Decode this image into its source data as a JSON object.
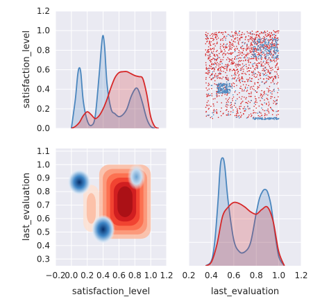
{
  "chart_data": {
    "type": "pairgrid",
    "variables": [
      "satisfaction_level",
      "last_evaluation"
    ],
    "series": [
      {
        "name": "",
        "color": "#4a86be"
      },
      {
        "name": "",
        "color": "#d62728"
      }
    ],
    "grid": true,
    "background": "#eaeaf2",
    "axes": {
      "satisfaction_level": {
        "label": "satisfaction_level",
        "range": [
          -0.2,
          1.2
        ],
        "ticks": [
          "−0.2",
          "0.0",
          "0.2",
          "0.4",
          "0.6",
          "0.8",
          "1.0",
          "1.2"
        ],
        "tick_values": [
          -0.2,
          0.0,
          0.2,
          0.4,
          0.6,
          0.8,
          1.0,
          1.2
        ],
        "y_ticks": [
          "0.0",
          "0.2",
          "0.4",
          "0.6",
          "0.8",
          "1.0",
          "1.2"
        ],
        "y_tick_values": [
          0.0,
          0.2,
          0.4,
          0.6,
          0.8,
          1.0,
          1.2
        ]
      },
      "last_evaluation": {
        "label": "last_evaluation",
        "range": [
          0.2,
          1.2
        ],
        "ticks": [
          "0.2",
          "0.4",
          "0.6",
          "0.8",
          "1.0",
          "1.2"
        ],
        "tick_values": [
          0.2,
          0.4,
          0.6,
          0.8,
          1.0,
          1.2
        ],
        "y_ticks": [
          "0.3",
          "0.4",
          "0.5",
          "0.6",
          "0.7",
          "0.8",
          "0.9",
          "1.0",
          "1.1"
        ],
        "y_tick_values": [
          0.3,
          0.4,
          0.5,
          0.6,
          0.7,
          0.8,
          0.9,
          1.0,
          1.1
        ]
      }
    },
    "panels": [
      {
        "position": "top-left",
        "type": "kde",
        "variable": "satisfaction_level",
        "series": [
          {
            "series_index": 0,
            "x": [
              0.0,
              0.05,
              0.08,
              0.1,
              0.12,
              0.15,
              0.2,
              0.25,
              0.3,
              0.35,
              0.38,
              0.4,
              0.42,
              0.45,
              0.5,
              0.55,
              0.6,
              0.65,
              0.7,
              0.75,
              0.8,
              0.83,
              0.86,
              0.9,
              0.95,
              1.0,
              1.05
            ],
            "y": [
              0.0,
              0.3,
              0.55,
              0.62,
              0.56,
              0.28,
              0.08,
              0.03,
              0.12,
              0.55,
              0.85,
              0.95,
              0.82,
              0.45,
              0.2,
              0.15,
              0.12,
              0.14,
              0.2,
              0.32,
              0.4,
              0.41,
              0.36,
              0.25,
              0.1,
              0.02,
              0.0
            ]
          },
          {
            "series_index": 1,
            "x": [
              0.0,
              0.05,
              0.1,
              0.15,
              0.2,
              0.25,
              0.3,
              0.35,
              0.4,
              0.45,
              0.5,
              0.55,
              0.6,
              0.65,
              0.7,
              0.75,
              0.8,
              0.85,
              0.9,
              0.95,
              1.0,
              1.05,
              1.1
            ],
            "y": [
              0.0,
              0.02,
              0.06,
              0.13,
              0.17,
              0.14,
              0.1,
              0.13,
              0.2,
              0.3,
              0.42,
              0.52,
              0.57,
              0.58,
              0.58,
              0.56,
              0.54,
              0.53,
              0.51,
              0.35,
              0.12,
              0.02,
              0.0
            ]
          }
        ]
      },
      {
        "position": "top-right",
        "type": "scatter",
        "x_variable": "last_evaluation",
        "y_variable": "satisfaction_level",
        "series": [
          {
            "series_index": 1,
            "regions": [
              {
                "x": [
                  0.35,
                  1.0
                ],
                "y": [
                  0.5,
                  1.0
                ],
                "weight": 900
              },
              {
                "x": [
                  0.35,
                  1.0
                ],
                "y": [
                  0.1,
                  0.5
                ],
                "weight": 350
              }
            ]
          },
          {
            "series_index": 0,
            "regions": [
              {
                "x": [
                  0.35,
                  1.0
                ],
                "y": [
                  0.1,
                  1.0
                ],
                "weight": 140
              },
              {
                "x": [
                  0.45,
                  0.57
                ],
                "y": [
                  0.36,
                  0.46
                ],
                "weight": 150
              },
              {
                "x": [
                  0.77,
                  1.0
                ],
                "y": [
                  0.72,
                  0.92
                ],
                "weight": 180
              },
              {
                "x": [
                  0.77,
                  1.0
                ],
                "y": [
                  0.09,
                  0.11
                ],
                "weight": 70
              }
            ]
          }
        ]
      },
      {
        "position": "bottom-left",
        "type": "kde2d",
        "x_variable": "satisfaction_level",
        "y_variable": "last_evaluation",
        "series": [
          {
            "series_index": 1,
            "regions": [
              {
                "x": [
                  0.35,
                  1.0
                ],
                "y": [
                  0.45,
                  1.0
                ],
                "level": 0.9
              },
              {
                "x": [
                  0.15,
                  0.35
                ],
                "y": [
                  0.5,
                  0.85
                ],
                "level": 0.35
              }
            ]
          },
          {
            "series_index": 0,
            "regions": [
              {
                "cx": 0.1,
                "cy": 0.87,
                "level": 0.8
              },
              {
                "cx": 0.4,
                "cy": 0.52,
                "level": 1.0
              },
              {
                "cx": 0.82,
                "cy": 0.91,
                "level": 0.3
              }
            ]
          }
        ]
      },
      {
        "position": "bottom-right",
        "type": "kde",
        "variable": "last_evaluation",
        "series": [
          {
            "series_index": 0,
            "x": [
              0.35,
              0.4,
              0.43,
              0.46,
              0.48,
              0.5,
              0.52,
              0.55,
              0.6,
              0.65,
              0.7,
              0.75,
              0.8,
              0.83,
              0.86,
              0.88,
              0.9,
              0.93,
              0.96,
              1.0,
              1.05
            ],
            "y": [
              0.0,
              0.04,
              0.2,
              0.55,
              0.85,
              0.92,
              0.85,
              0.55,
              0.22,
              0.12,
              0.12,
              0.2,
              0.45,
              0.58,
              0.64,
              0.65,
              0.63,
              0.52,
              0.32,
              0.08,
              0.0
            ]
          },
          {
            "series_index": 1,
            "x": [
              0.35,
              0.4,
              0.45,
              0.5,
              0.55,
              0.6,
              0.65,
              0.7,
              0.75,
              0.8,
              0.85,
              0.9,
              0.95,
              1.0,
              1.05
            ],
            "y": [
              0.0,
              0.03,
              0.18,
              0.42,
              0.5,
              0.54,
              0.53,
              0.5,
              0.46,
              0.44,
              0.48,
              0.5,
              0.38,
              0.12,
              0.0
            ]
          }
        ]
      }
    ]
  }
}
